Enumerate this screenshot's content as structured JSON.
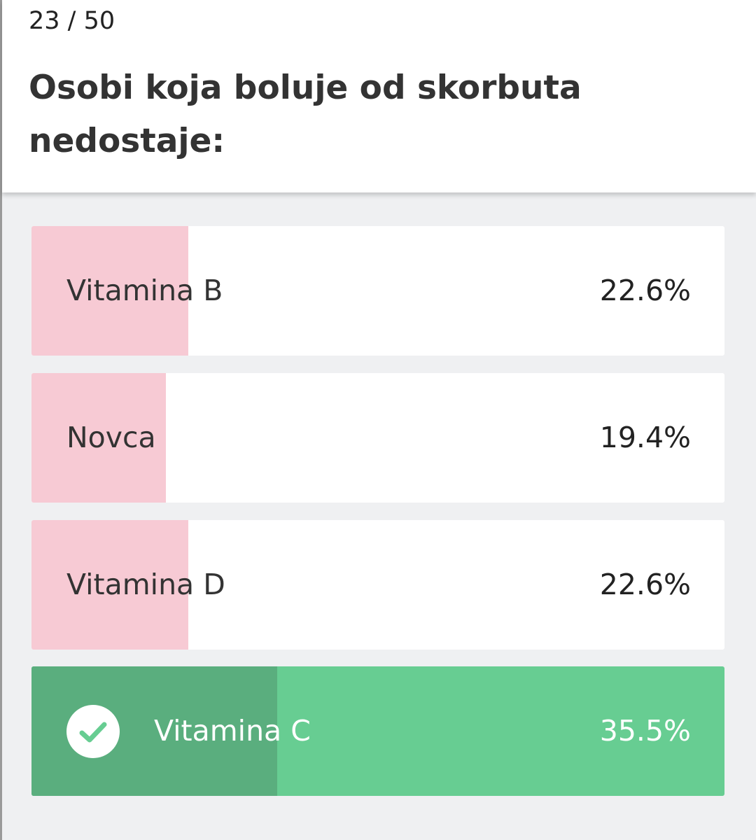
{
  "header": {
    "counter": "23 / 50",
    "question": "Osobi koja boluje od skorbuta nedostaje:"
  },
  "options": [
    {
      "label": "Vitamina B",
      "percent_text": "22.6%",
      "percent": 22.6,
      "correct": false
    },
    {
      "label": "Novca",
      "percent_text": "19.4%",
      "percent": 19.4,
      "correct": false
    },
    {
      "label": "Vitamina D",
      "percent_text": "22.6%",
      "percent": 22.6,
      "correct": false
    },
    {
      "label": "Vitamina C",
      "percent_text": "35.5%",
      "percent": 35.5,
      "correct": true,
      "icon": "check-circle-icon"
    }
  ],
  "colors": {
    "wrong_fill": "#f7cad4",
    "correct_bg": "#67cd92",
    "correct_fill": "#5aae7e",
    "background": "#eff0f2"
  }
}
